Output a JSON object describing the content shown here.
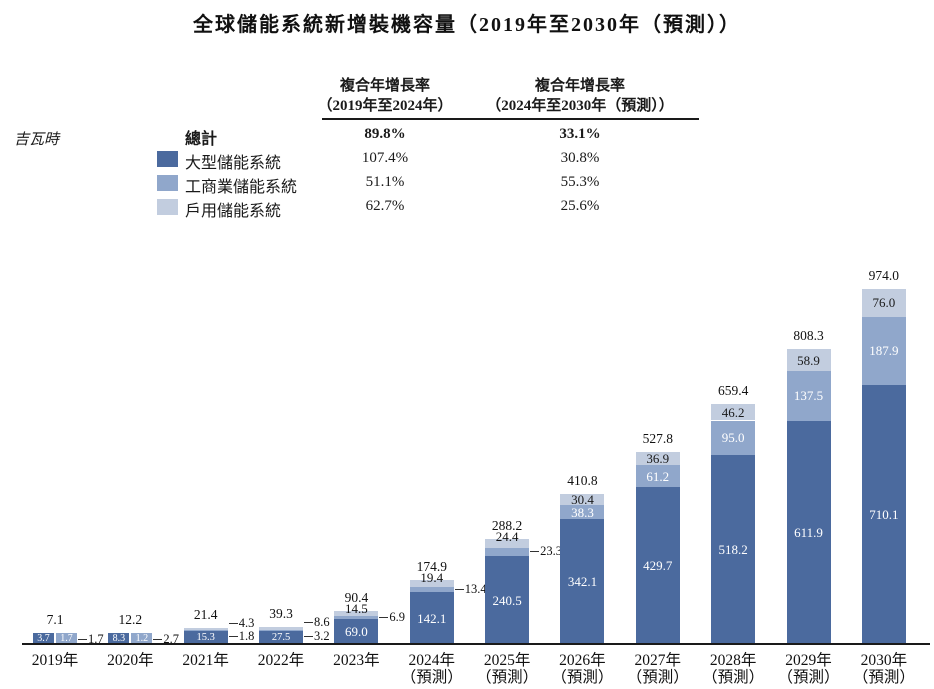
{
  "title": "全球儲能系統新增裝機容量（2019年至2030年（預測））",
  "y_axis_label": "吉瓦時",
  "cagr_table": {
    "headers": [
      {
        "line1": "複合年增長率",
        "line2": "（2019年至2024年）"
      },
      {
        "line1": "複合年增長率",
        "line2": "（2024年至2030年（預測））"
      }
    ],
    "rows": [
      {
        "label": "總計",
        "swatch": null,
        "cagr_2019_2024": "89.8%",
        "cagr_2024_2030": "33.1%"
      },
      {
        "label": "大型儲能系統",
        "swatch": "#4B6A9E",
        "cagr_2019_2024": "107.4%",
        "cagr_2024_2030": "30.8%"
      },
      {
        "label": "工商業儲能系統",
        "swatch": "#90A7CB",
        "cagr_2019_2024": "51.1%",
        "cagr_2024_2030": "55.3%"
      },
      {
        "label": "戶用儲能系統",
        "swatch": "#C2CDDF",
        "cagr_2019_2024": "62.7%",
        "cagr_2024_2030": "25.6%"
      }
    ]
  },
  "chart_data": {
    "type": "bar",
    "stacked": true,
    "title": "全球儲能系統新增裝機容量（2019年至2030年（預測））",
    "ylabel": "吉瓦時",
    "ylim": [
      0,
      974
    ],
    "grid": false,
    "legend_position": "top-left-table",
    "categories": [
      {
        "line1": "2019年",
        "line2": ""
      },
      {
        "line1": "2020年",
        "line2": ""
      },
      {
        "line1": "2021年",
        "line2": ""
      },
      {
        "line1": "2022年",
        "line2": ""
      },
      {
        "line1": "2023年",
        "line2": ""
      },
      {
        "line1": "2024年",
        "line2": "（預測）"
      },
      {
        "line1": "2025年",
        "line2": "（預測）"
      },
      {
        "line1": "2026年",
        "line2": "（預測）"
      },
      {
        "line1": "2027年",
        "line2": "（預測）"
      },
      {
        "line1": "2028年",
        "line2": "（預測）"
      },
      {
        "line1": "2029年",
        "line2": "（預測）"
      },
      {
        "line1": "2030年",
        "line2": "（預測）"
      }
    ],
    "series": [
      {
        "name": "大型儲能系統",
        "color": "#4B6A9E",
        "values": [
          3.7,
          8.3,
          15.3,
          27.5,
          69.0,
          142.1,
          240.5,
          342.1,
          429.7,
          518.2,
          611.9,
          710.1
        ]
      },
      {
        "name": "工商業儲能系統",
        "color": "#90A7CB",
        "values": [
          1.7,
          1.2,
          1.8,
          3.2,
          6.9,
          13.4,
          23.3,
          38.3,
          61.2,
          95.0,
          137.5,
          187.9
        ]
      },
      {
        "name": "戶用儲能系統",
        "color": "#C2CDDF",
        "values": [
          1.7,
          2.7,
          4.3,
          8.6,
          14.5,
          19.4,
          24.4,
          30.4,
          36.9,
          46.2,
          58.9,
          76.0
        ]
      }
    ],
    "totals": [
      7.1,
      12.2,
      21.4,
      39.3,
      90.4,
      174.9,
      288.2,
      410.8,
      527.8,
      659.4,
      808.3,
      974.0
    ],
    "label_layout": [
      [
        "chip",
        "chip",
        "leader"
      ],
      [
        "chip",
        "chip",
        "leader"
      ],
      [
        "chip",
        "leader",
        "leader"
      ],
      [
        "chip",
        "leader",
        "leader"
      ],
      [
        "inside",
        "leader",
        "above"
      ],
      [
        "inside",
        "leader",
        "above"
      ],
      [
        "inside",
        "leader",
        "above"
      ],
      [
        "inside",
        "inside",
        "inside"
      ],
      [
        "inside",
        "inside",
        "inside"
      ],
      [
        "inside",
        "inside",
        "inside"
      ],
      [
        "inside",
        "inside",
        "inside"
      ],
      [
        "inside",
        "inside",
        "inside"
      ]
    ]
  }
}
